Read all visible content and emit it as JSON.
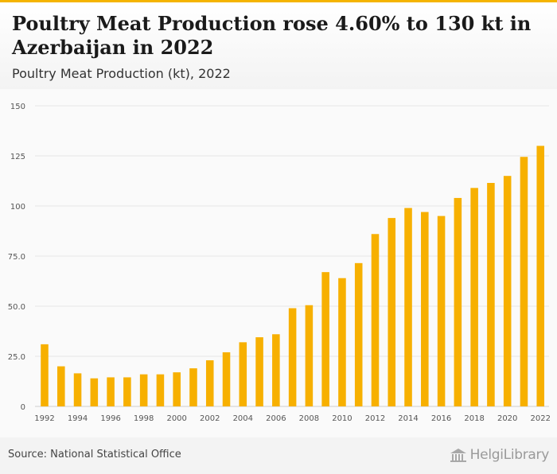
{
  "header": {
    "title": "Poultry Meat Production rose 4.60% to 130 kt in Azerbaijan in 2022",
    "subtitle": "Poultry Meat Production (kt), 2022"
  },
  "footer": {
    "source": "Source: National Statistical Office",
    "brand": "HelgiLibrary"
  },
  "colors": {
    "bar": "#f7b000",
    "accent": "#f5b400",
    "grid": "#e6e6e6"
  },
  "chart_data": {
    "type": "bar",
    "title": "Poultry Meat Production (kt), 2022",
    "categories": [
      "1992",
      "1993",
      "1994",
      "1995",
      "1996",
      "1997",
      "1998",
      "1999",
      "2000",
      "2001",
      "2002",
      "2003",
      "2004",
      "2005",
      "2006",
      "2007",
      "2008",
      "2009",
      "2010",
      "2011",
      "2012",
      "2013",
      "2014",
      "2015",
      "2016",
      "2017",
      "2018",
      "2019",
      "2020",
      "2021",
      "2022"
    ],
    "values": [
      31,
      20,
      16.5,
      14,
      14.5,
      14.5,
      16,
      16,
      17,
      19,
      23,
      27,
      32,
      34.5,
      36,
      49,
      50.5,
      67,
      64,
      71.5,
      86,
      94,
      99,
      97,
      95,
      104,
      109,
      111.5,
      115,
      124.5,
      130
    ],
    "x_tick_labels": [
      "1992",
      "1994",
      "1996",
      "1998",
      "2000",
      "2002",
      "2004",
      "2006",
      "2008",
      "2010",
      "2012",
      "2014",
      "2016",
      "2018",
      "2020",
      "2022"
    ],
    "y_tick_labels": [
      "0",
      "25.0",
      "50.0",
      "75.0",
      "100",
      "125",
      "150"
    ],
    "ylim": [
      0,
      150
    ],
    "grid": true,
    "xlabel": "",
    "ylabel": ""
  }
}
